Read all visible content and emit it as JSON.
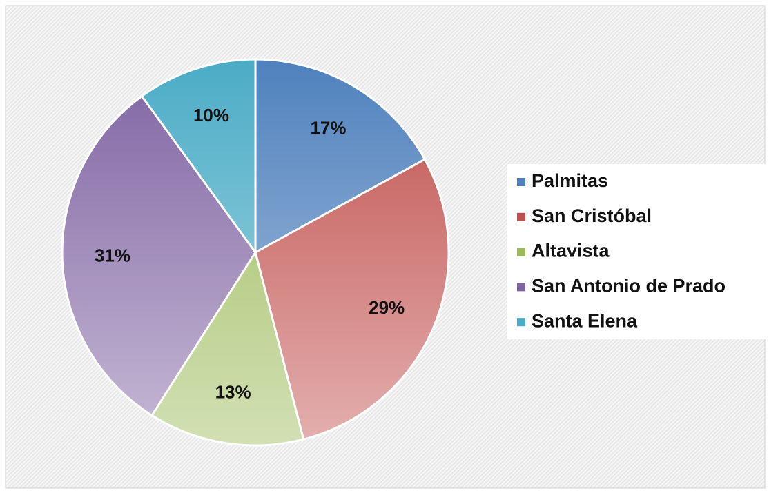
{
  "chart_data": {
    "type": "pie",
    "categories": [
      "Palmitas",
      "San Cristóbal",
      "Altavista",
      "San Antonio de Prado",
      "Santa Elena"
    ],
    "values": [
      17,
      29,
      13,
      31,
      10
    ],
    "value_labels": [
      "17%",
      "29%",
      "13%",
      "31%",
      "10%"
    ],
    "colors": [
      "#4f81bd",
      "#c0504d",
      "#9bbb59",
      "#8064a2",
      "#4bacc6"
    ],
    "legend": "right"
  }
}
